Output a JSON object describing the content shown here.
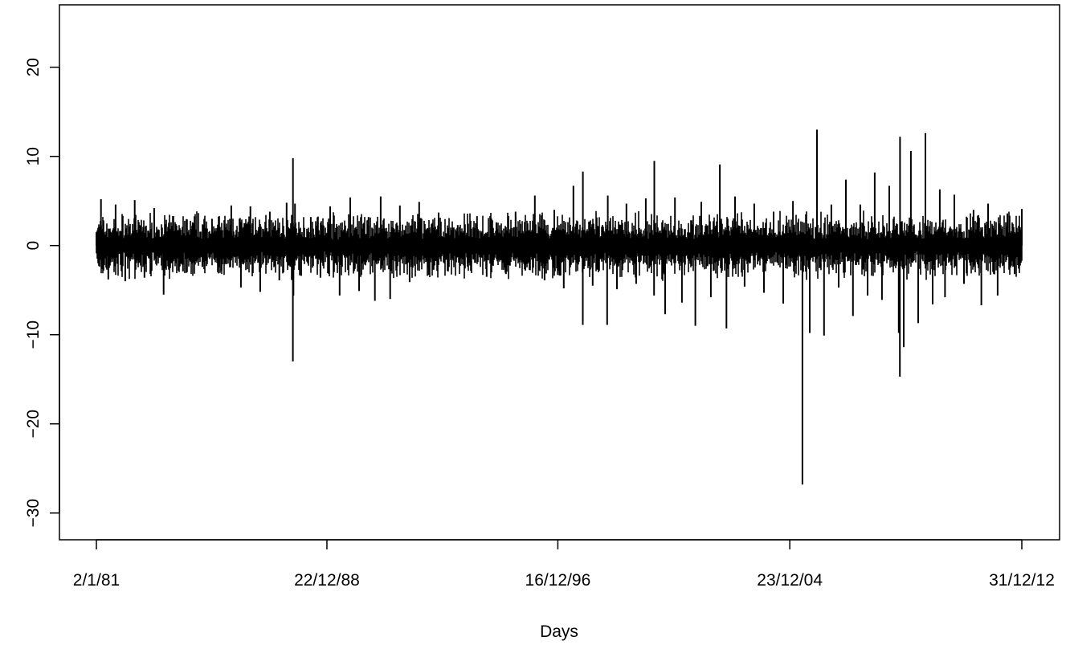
{
  "chart_data": {
    "type": "line",
    "title": "",
    "xlabel": "Days",
    "ylabel": "",
    "ylim": [
      -33,
      27
    ],
    "y_ticks": [
      -30,
      -20,
      -10,
      0,
      10,
      20
    ],
    "x_ticks": [
      {
        "date": "1981-01-02",
        "label": "2/1/81"
      },
      {
        "date": "1988-12-22",
        "label": "22/12/88"
      },
      {
        "date": "1996-12-16",
        "label": "16/12/96"
      },
      {
        "date": "2004-12-23",
        "label": "23/12/04"
      },
      {
        "date": "2012-12-31",
        "label": "31/12/12"
      }
    ],
    "xlim": [
      "1981-01-02",
      "2012-12-31"
    ],
    "grid": false,
    "legend": "none",
    "line_color": "#000000",
    "series": [
      {
        "values_description_note": "",
        "x": [
          "1981-01-02",
          "1981-03-01",
          "1981-06-01",
          "1981-09-01",
          "1982-01-01",
          "1982-05-01",
          "1982-09-01",
          "1983-01-01",
          "1983-05-01",
          "1983-09-01",
          "1984-01-01",
          "1984-05-01",
          "1984-09-01",
          "1985-01-01",
          "1985-05-01",
          "1985-09-01",
          "1986-01-01",
          "1986-05-01",
          "1986-09-01",
          "1987-01-01",
          "1987-05-01",
          "1987-08-01",
          "1987-10-19",
          "1987-10-20",
          "1987-10-26",
          "1987-11-15",
          "1988-02-01",
          "1988-06-01",
          "1988-10-01",
          "1989-02-01",
          "1989-06-01",
          "1989-10-13",
          "1990-02-01",
          "1990-06-01",
          "1990-08-20",
          "1990-11-01",
          "1991-03-01",
          "1991-07-01",
          "1991-11-01",
          "1992-03-01",
          "1992-07-01",
          "1992-11-01",
          "1993-03-01",
          "1993-07-01",
          "1993-11-01",
          "1994-03-01",
          "1994-07-01",
          "1994-11-01",
          "1995-03-01",
          "1995-07-01",
          "1995-11-01",
          "1996-03-01",
          "1996-07-01",
          "1996-11-01",
          "1997-03-01",
          "1997-07-01",
          "1997-10-27",
          "1997-10-28",
          "1998-03-01",
          "1998-08-31",
          "1998-09-08",
          "1999-01-01",
          "1999-05-01",
          "1999-09-01",
          "2000-01-01",
          "2000-04-14",
          "2000-04-17",
          "2000-09-01",
          "2001-01-03",
          "2001-04-01",
          "2001-09-17",
          "2001-12-01",
          "2002-04-01",
          "2002-07-24",
          "2002-10-15",
          "2003-02-01",
          "2003-06-01",
          "2003-10-01",
          "2004-02-01",
          "2004-06-01",
          "2004-10-01",
          "2005-02-01",
          "2005-06-01",
          "2005-09-01",
          "2005-12-01",
          "2006-03-01",
          "2006-06-01",
          "2006-09-01",
          "2006-12-01",
          "2007-03-01",
          "2007-06-01",
          "2007-09-01",
          "2007-12-01",
          "2008-03-01",
          "2008-06-01",
          "2008-09-29",
          "2008-10-13",
          "2008-10-15",
          "2008-12-01",
          "2009-03-01",
          "2009-06-01",
          "2009-09-01",
          "2009-12-01",
          "2010-03-01",
          "2010-05-06",
          "2010-09-01",
          "2011-01-01",
          "2011-05-01",
          "2011-08-08",
          "2011-11-01",
          "2012-03-01",
          "2012-07-01",
          "2012-10-01",
          "2012-12-31"
        ],
        "y": [
          1.5,
          5.2,
          -3.8,
          4.6,
          -4.0,
          5.1,
          -3.6,
          4.2,
          -5.5,
          3.3,
          -2.9,
          2.6,
          -2.4,
          3.0,
          -2.8,
          4.5,
          -4.7,
          4.4,
          -5.2,
          3.8,
          -3.9,
          4.8,
          -13.0,
          9.8,
          -5.6,
          4.7,
          -3.4,
          3.2,
          -3.6,
          4.4,
          -5.6,
          5.4,
          -5.1,
          3.2,
          -6.2,
          5.5,
          -6.0,
          4.5,
          -4.1,
          4.9,
          -3.3,
          3.7,
          -2.9,
          2.3,
          -2.1,
          3.3,
          -3.5,
          2.6,
          -3.2,
          3.8,
          -2.8,
          5.6,
          -3.9,
          4.0,
          -4.8,
          6.7,
          -8.9,
          8.3,
          -4.5,
          -8.9,
          5.6,
          -4.9,
          4.7,
          -4.3,
          5.3,
          -5.6,
          9.5,
          -7.7,
          5.4,
          -6.4,
          -9.0,
          4.9,
          -5.8,
          9.1,
          -9.3,
          5.5,
          -4.6,
          4.7,
          -5.3,
          3.8,
          -6.5,
          5.0,
          -26.8,
          -9.8,
          13.0,
          -10.1,
          4.6,
          -4.7,
          7.4,
          -7.9,
          4.6,
          -5.6,
          8.2,
          -6.1,
          6.7,
          -9.8,
          -14.7,
          12.2,
          -11.4,
          10.6,
          -8.7,
          12.6,
          -6.6,
          6.3,
          -5.8,
          5.7,
          -4.3,
          4.0,
          -6.7,
          4.7,
          -5.6,
          3.6,
          -3.2,
          4.1
        ]
      }
    ]
  }
}
